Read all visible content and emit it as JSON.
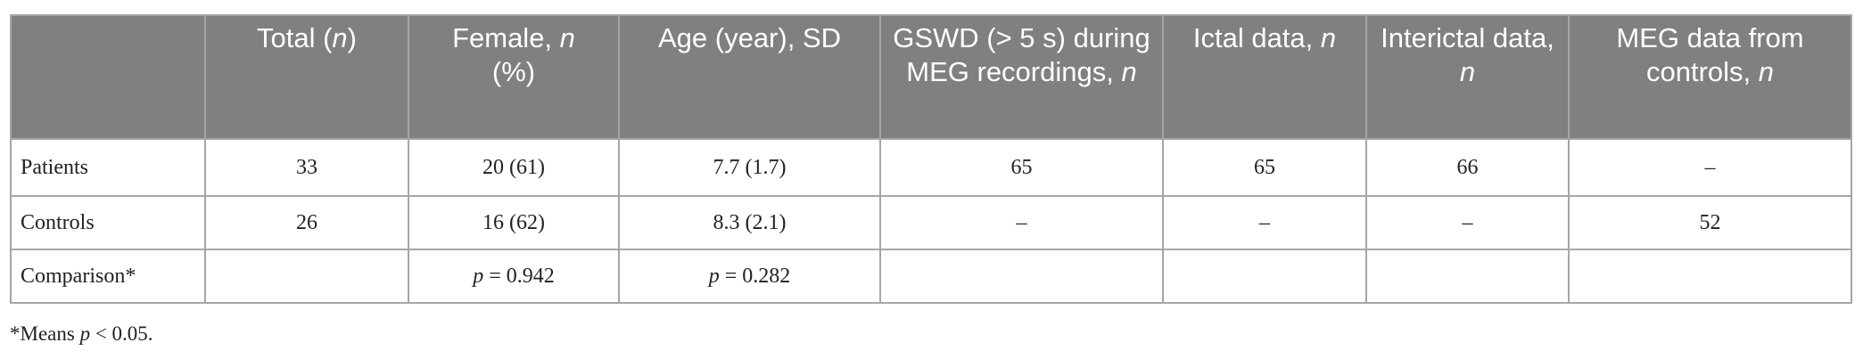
{
  "table": {
    "header": [
      null,
      [
        "Total (",
        "n",
        ")"
      ],
      [
        "Female, ",
        "n",
        "(%)"
      ],
      [
        "Age (year), SD"
      ],
      [
        "GSWD (> 5 s) during MEG recordings, ",
        "n"
      ],
      [
        "Ictal data, ",
        "n"
      ],
      [
        "Interictal data, ",
        "n"
      ],
      [
        "MEG data from controls, ",
        "n"
      ]
    ],
    "rows": [
      [
        "Patients",
        "33",
        "20 (61)",
        "7.7 (1.7)",
        "65",
        "65",
        "66",
        "–"
      ],
      [
        "Controls",
        "26",
        "16 (62)",
        "8.3 (2.1)",
        "–",
        "–",
        "–",
        "52"
      ],
      [
        "Comparison*",
        null,
        [
          "p",
          " = 0.942"
        ],
        [
          "p",
          " = 0.282"
        ],
        null,
        null,
        null,
        null
      ]
    ]
  },
  "footnote": [
    "*Means ",
    "p",
    " < 0.05."
  ]
}
